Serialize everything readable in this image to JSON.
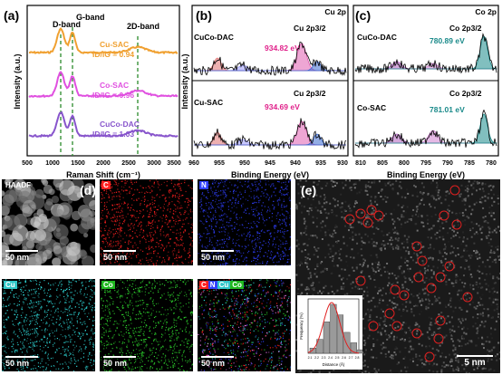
{
  "panels": {
    "a": "(a)",
    "b": "(b)",
    "c": "(c)",
    "d": "(d)",
    "e": "(e)"
  },
  "raman": {
    "dband": "D-band",
    "gband": "G-band",
    "band2d": "2D-band",
    "ylabel": "Intensity (a.u.)",
    "xlabel": "Raman Shift (cm⁻¹)",
    "ticks": [
      "500",
      "1000",
      "1500",
      "2000",
      "2500",
      "3000",
      "3500"
    ],
    "series": [
      {
        "name": "Cu-SAC",
        "ratio": "ID/IG = 0.94",
        "color": "#f0a030"
      },
      {
        "name": "Co-SAC",
        "ratio": "ID/IG = 0.96",
        "color": "#e050e0"
      },
      {
        "name": "CuCo-DAC",
        "ratio": "ID/IG = 1.03",
        "color": "#8855cc"
      }
    ]
  },
  "cu2p": {
    "title": "Cu 2p",
    "top_sample": "CuCo-DAC",
    "top_peak": "Cu 2p3/2",
    "top_energy": "934.82 eV",
    "bot_sample": "Cu-SAC",
    "bot_peak": "Cu 2p3/2",
    "bot_energy": "934.69 eV",
    "xlabel": "Binding Energy (eV)",
    "ylabel": "Intensity (a.u.)",
    "ticks": [
      "960",
      "955",
      "950",
      "945",
      "940",
      "935",
      "930"
    ]
  },
  "co2p": {
    "title": "Co 2p",
    "top_sample": "CuCo-DAC",
    "top_peak": "Co 2p3/2",
    "top_energy": "780.89 eV",
    "bot_sample": "Co-SAC",
    "bot_peak": "Co 2p3/2",
    "bot_energy": "781.01 eV",
    "xlabel": "Binding Energy (eV)",
    "ticks": [
      "810",
      "805",
      "800",
      "795",
      "790",
      "785",
      "780"
    ]
  },
  "maps": [
    {
      "label": "HAADF",
      "scale": "50 nm",
      "color": "#cfcfcf"
    },
    {
      "label": "C",
      "scale": "50 nm",
      "color": "#ff2020"
    },
    {
      "label": "N",
      "scale": "50 nm",
      "color": "#3040ff"
    },
    {
      "label": "Cu",
      "scale": "50 nm",
      "color": "#30e0e0"
    },
    {
      "label": "Co",
      "scale": "50 nm",
      "color": "#30e030"
    },
    {
      "label": "C N Cu Co",
      "scale": "50 nm",
      "color": "#ff60ff"
    }
  ],
  "overlay_tags": [
    "C",
    "N",
    "Cu",
    "Co"
  ],
  "stem": {
    "scale": "5 nm",
    "hist_ylabel": "Frequency (%)",
    "hist_xlabel": "Distance (Å)",
    "hist_ticks": [
      "2.1",
      "2.2",
      "2.3",
      "2.4",
      "2.5",
      "2.6",
      "2.7",
      "2.8"
    ],
    "hist_values": [
      3,
      8,
      18,
      28,
      22,
      12,
      6,
      2
    ]
  }
}
